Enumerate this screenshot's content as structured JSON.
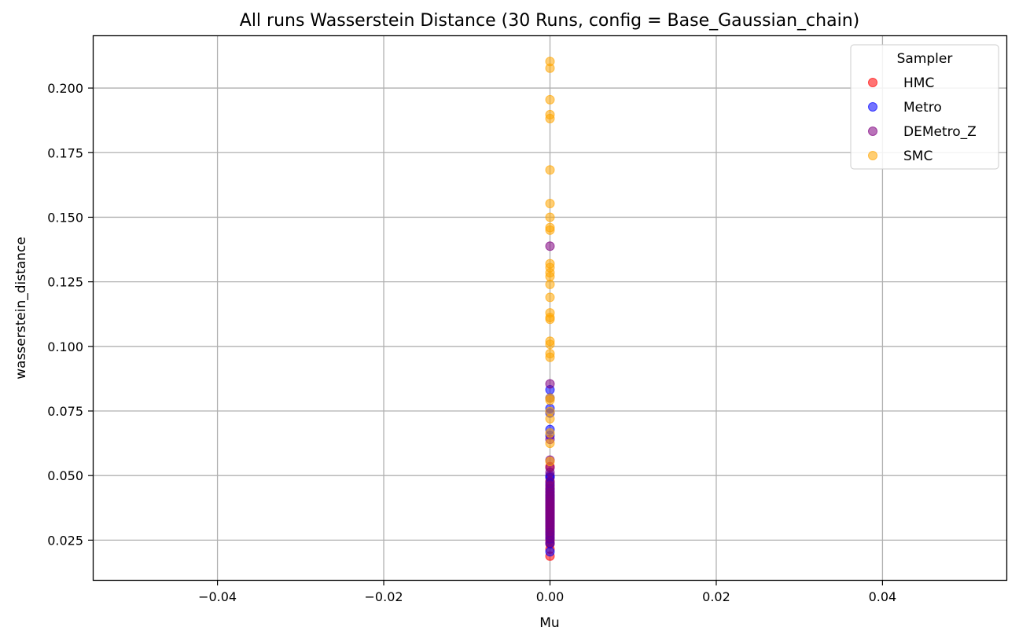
{
  "chart_data": {
    "type": "scatter",
    "title": "All runs Wasserstein Distance (30 Runs, config = Base_Gaussian_chain)",
    "xlabel": "Mu",
    "ylabel": "wasserstein_distance",
    "xlim": [
      -0.055,
      0.055
    ],
    "ylim": [
      0.0093,
      0.2204
    ],
    "xticks": [
      -0.04,
      -0.02,
      0.0,
      0.02,
      0.04
    ],
    "xtick_labels": [
      "−0.04",
      "−0.02",
      "0.00",
      "0.02",
      "0.04"
    ],
    "yticks": [
      0.025,
      0.05,
      0.075,
      0.1,
      0.125,
      0.15,
      0.175,
      0.2
    ],
    "ytick_labels": [
      "0.025",
      "0.050",
      "0.075",
      "0.100",
      "0.125",
      "0.150",
      "0.175",
      "0.200"
    ],
    "grid": true,
    "legend": {
      "title": "Sampler",
      "placement": "top-right"
    },
    "series": [
      {
        "name": "HMC",
        "color": "#ff0000",
        "x": [
          0,
          0,
          0,
          0,
          0,
          0,
          0,
          0,
          0,
          0,
          0,
          0,
          0,
          0,
          0,
          0,
          0,
          0,
          0,
          0,
          0,
          0,
          0,
          0,
          0,
          0,
          0,
          0,
          0,
          0
        ],
        "y": [
          0.0188,
          0.0215,
          0.0235,
          0.0248,
          0.0262,
          0.0275,
          0.0285,
          0.0295,
          0.0302,
          0.031,
          0.0318,
          0.0326,
          0.0333,
          0.034,
          0.0348,
          0.0355,
          0.0362,
          0.037,
          0.0378,
          0.0386,
          0.0395,
          0.0404,
          0.0413,
          0.0423,
          0.0433,
          0.0445,
          0.0458,
          0.0475,
          0.0495,
          0.0535
        ]
      },
      {
        "name": "Metro",
        "color": "#0000ff",
        "x": [
          0,
          0,
          0,
          0,
          0,
          0,
          0,
          0,
          0,
          0,
          0,
          0,
          0,
          0,
          0,
          0,
          0,
          0,
          0,
          0,
          0,
          0,
          0,
          0,
          0,
          0,
          0,
          0,
          0,
          0
        ],
        "y": [
          0.0205,
          0.0238,
          0.0255,
          0.0268,
          0.028,
          0.0292,
          0.0305,
          0.0316,
          0.0326,
          0.0336,
          0.0346,
          0.0356,
          0.0366,
          0.0376,
          0.0386,
          0.0396,
          0.0405,
          0.0415,
          0.0425,
          0.0437,
          0.045,
          0.0468,
          0.0492,
          0.05,
          0.0655,
          0.0678,
          0.0742,
          0.076,
          0.08,
          0.0832
        ]
      },
      {
        "name": "DEMetro_Z",
        "color": "#800080",
        "x": [
          0,
          0,
          0,
          0,
          0,
          0,
          0,
          0,
          0,
          0,
          0,
          0,
          0,
          0,
          0,
          0,
          0,
          0,
          0,
          0,
          0,
          0,
          0,
          0,
          0,
          0,
          0,
          0,
          0,
          0
        ],
        "y": [
          0.024,
          0.0258,
          0.0272,
          0.0284,
          0.0295,
          0.0305,
          0.0314,
          0.0323,
          0.0332,
          0.034,
          0.0348,
          0.0356,
          0.0364,
          0.0372,
          0.038,
          0.0388,
          0.0396,
          0.0405,
          0.0414,
          0.0424,
          0.0436,
          0.0448,
          0.0462,
          0.0478,
          0.0512,
          0.053,
          0.056,
          0.064,
          0.0855,
          0.1388
        ]
      },
      {
        "name": "SMC",
        "color": "#ffa500",
        "x": [
          0,
          0,
          0,
          0,
          0,
          0,
          0,
          0,
          0,
          0,
          0,
          0,
          0,
          0,
          0,
          0,
          0,
          0,
          0,
          0,
          0,
          0,
          0,
          0,
          0,
          0,
          0,
          0,
          0,
          0
        ],
        "y": [
          0.0625,
          0.0665,
          0.072,
          0.0748,
          0.08,
          0.0958,
          0.0972,
          0.1008,
          0.102,
          0.1105,
          0.1112,
          0.113,
          0.119,
          0.124,
          0.127,
          0.1285,
          0.1305,
          0.132,
          0.145,
          0.146,
          0.15,
          0.1553,
          0.1683,
          0.1882,
          0.1897,
          0.1955,
          0.2077,
          0.2103,
          0.0555,
          0.0792
        ]
      }
    ]
  }
}
